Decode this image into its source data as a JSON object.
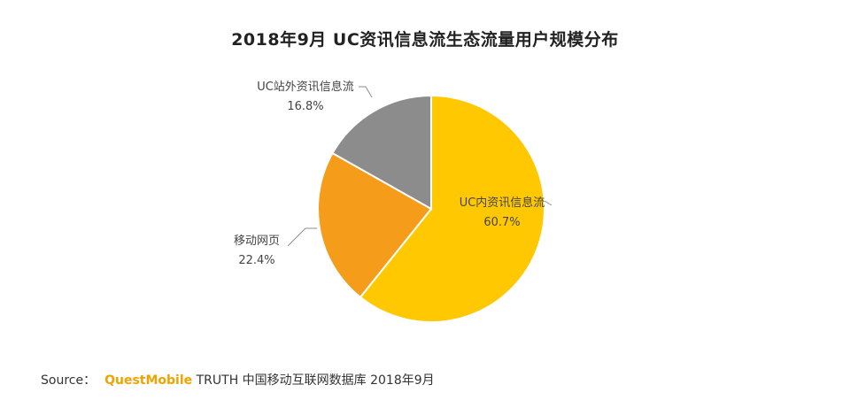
{
  "title": "2018年9月 UC资讯信息流生态流量用户规模分布",
  "chart_data": {
    "type": "pie",
    "title": "2018年9月 UC资讯信息流生态流量用户规模分布",
    "slices": [
      {
        "label": "UC内资讯信息流",
        "value": 60.7,
        "value_text": "60.7%",
        "color": "#ffc800"
      },
      {
        "label": "移动网页",
        "value": 22.4,
        "value_text": "22.4%",
        "color": "#f59c1a"
      },
      {
        "label": "UC站外资讯信息流",
        "value": 16.8,
        "value_text": "16.8%",
        "color": "#8c8c8c"
      }
    ],
    "start_angle": "12 o'clock",
    "direction": "clockwise",
    "legend": "none"
  },
  "source": {
    "prefix": "Source：",
    "brand": "QuestMobile",
    "text": "TRUTH 中国移动互联网数据库 2018年9月"
  }
}
